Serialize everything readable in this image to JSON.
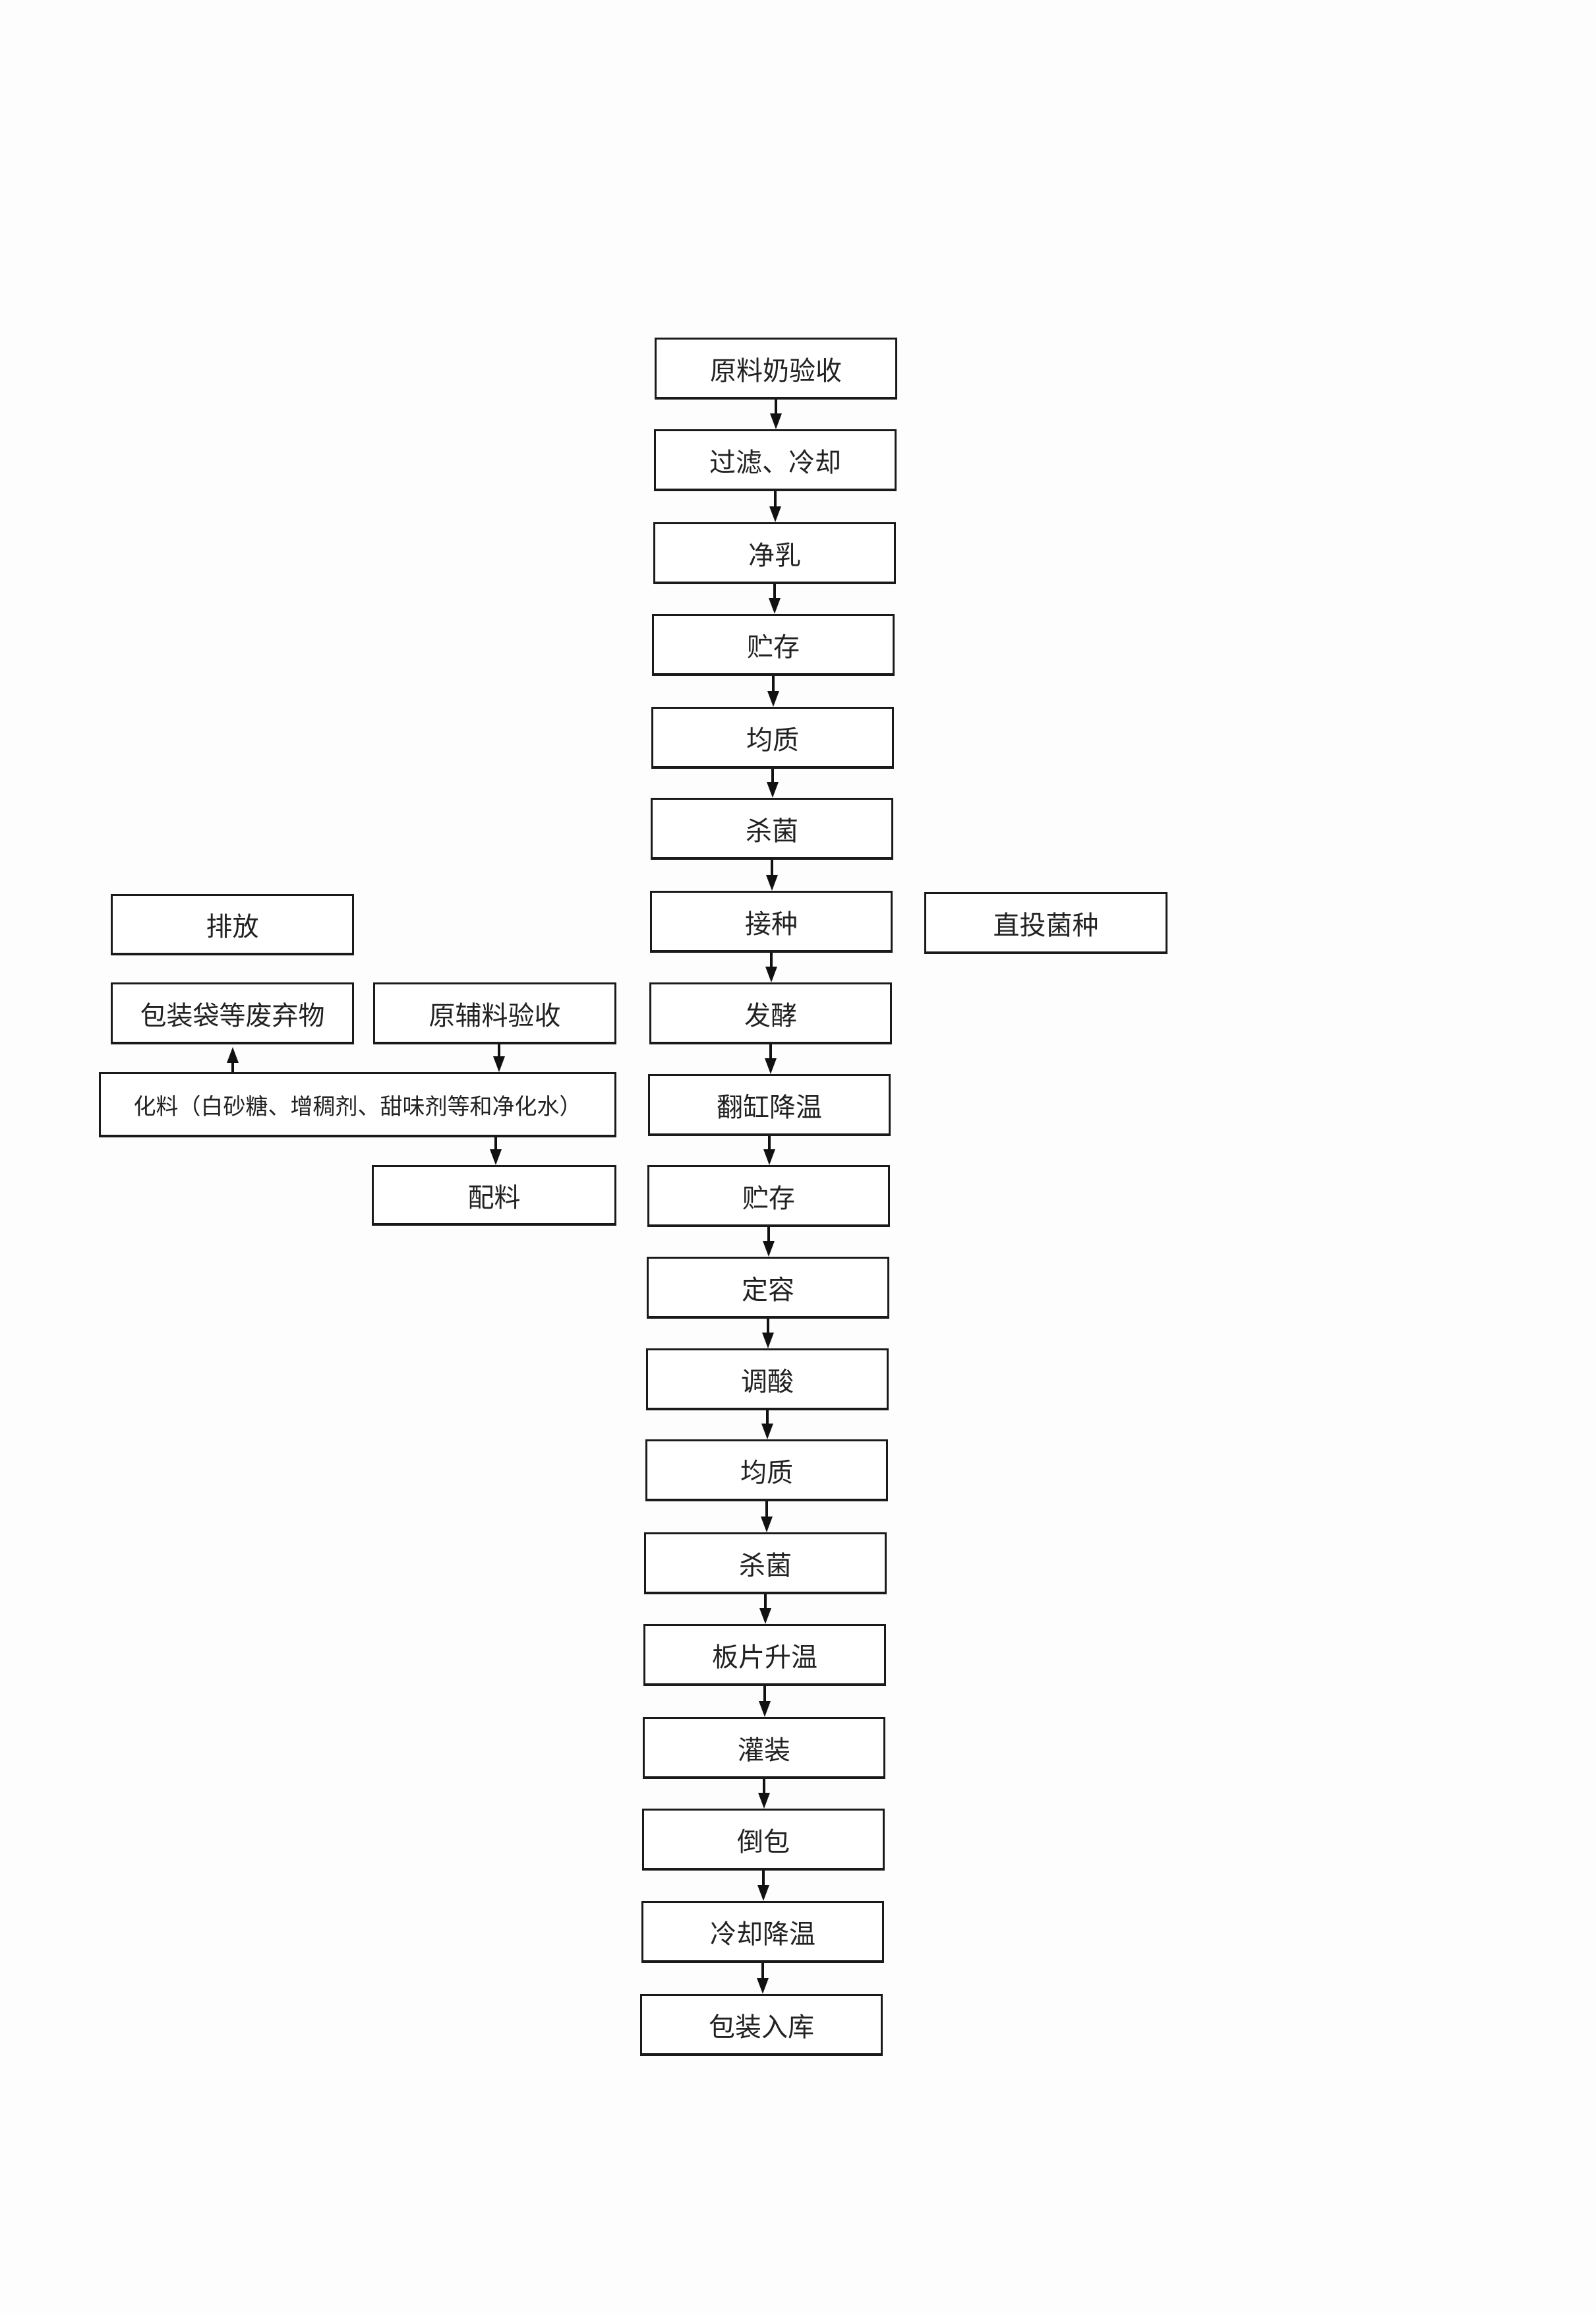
{
  "main_flow": [
    "原料奶验收",
    "过滤、冷却",
    "净乳",
    "贮存",
    "均质",
    "杀菌",
    "接种",
    "发酵",
    "翻缸降温",
    "贮存",
    "定容",
    "调酸",
    "均质",
    "杀菌",
    "板片升温",
    "灌装",
    "倒包",
    "冷却降温",
    "包装入库"
  ],
  "side": {
    "discharge": "排放",
    "packaging_waste": "包装袋等废弃物",
    "raw_aux_acceptance": "原辅料验收",
    "dissolving": "化料（白砂糖、增稠剂、甜味剂等和净化水）",
    "batching": "配料",
    "direct_culture": "直投菌种"
  }
}
